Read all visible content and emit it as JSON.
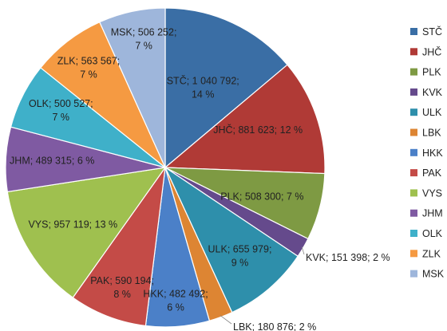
{
  "chart_data": {
    "type": "pie",
    "start_angle_deg": 0,
    "direction": "clockwise",
    "legend_position": "right",
    "slices": [
      {
        "code": "STČ",
        "value": 1040792,
        "value_label": "1 040 792",
        "percent_label": "14 %",
        "color": "#3a6ea5"
      },
      {
        "code": "JHČ",
        "value": 881623,
        "value_label": "881 623",
        "percent_label": "12 %",
        "color": "#b03a36"
      },
      {
        "code": "PLK",
        "value": 508300,
        "value_label": "508 300",
        "percent_label": "7 %",
        "color": "#7e9a43"
      },
      {
        "code": "KVK",
        "value": 151398,
        "value_label": "151 398",
        "percent_label": "2 %",
        "color": "#654a8c"
      },
      {
        "code": "ULK",
        "value": 655979,
        "value_label": "655 979",
        "percent_label": "9 %",
        "color": "#2e8fab"
      },
      {
        "code": "LBK",
        "value": 180876,
        "value_label": "180 876",
        "percent_label": "2 %",
        "color": "#dd8533"
      },
      {
        "code": "HKK",
        "value": 482492,
        "value_label": "482 492",
        "percent_label": "6 %",
        "color": "#4b80c8"
      },
      {
        "code": "PAK",
        "value": 590194,
        "value_label": "590 194",
        "percent_label": "8 %",
        "color": "#c44b47"
      },
      {
        "code": "VYS",
        "value": 957119,
        "value_label": "957 119",
        "percent_label": "13 %",
        "color": "#9fc04f"
      },
      {
        "code": "JHM",
        "value": 489315,
        "value_label": "489 315",
        "percent_label": "6 %",
        "color": "#7f5aa2"
      },
      {
        "code": "OLK",
        "value": 500527,
        "value_label": "500 527",
        "percent_label": "7 %",
        "color": "#3fb0c9"
      },
      {
        "code": "ZLK",
        "value": 563567,
        "value_label": "563 567",
        "percent_label": "7 %",
        "color": "#f59a42"
      },
      {
        "code": "MSK",
        "value": 506252,
        "value_label": "506 252",
        "percent_label": "7 %",
        "color": "#9eb6db"
      }
    ]
  }
}
